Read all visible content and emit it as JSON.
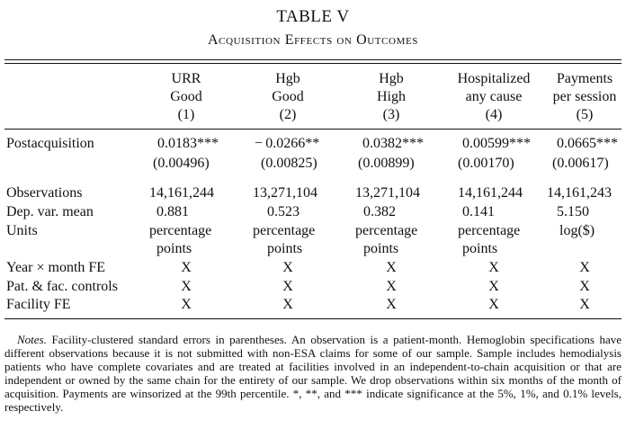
{
  "title": "TABLE V",
  "subtitle": "Acquisition Effects on Outcomes",
  "columns": [
    {
      "line1": "URR",
      "line2": "Good",
      "num": "(1)"
    },
    {
      "line1": "Hgb",
      "line2": "Good",
      "num": "(2)"
    },
    {
      "line1": "Hgb",
      "line2": "High",
      "num": "(3)"
    },
    {
      "line1": "Hospitalized",
      "line2": "any cause",
      "num": "(4)"
    },
    {
      "line1": "Payments",
      "line2": "per session",
      "num": "(5)"
    }
  ],
  "post": {
    "label": "Postacquisition",
    "coef": [
      "0.0183***",
      "− 0.0266**",
      "0.0382***",
      "0.00599***",
      "0.0665***"
    ],
    "se": [
      "(0.00496)",
      "(0.00825)",
      "(0.00899)",
      "(0.00170)",
      "(0.00617)"
    ]
  },
  "obs": {
    "label": "Observations",
    "values": [
      "14,161,244",
      "13,271,104",
      "13,271,104",
      "14,161,244",
      "14,161,243"
    ]
  },
  "depvar": {
    "label": "Dep. var. mean",
    "values": [
      "0.881",
      "0.523",
      "0.382",
      "0.141",
      "5.150"
    ]
  },
  "units": {
    "label": "Units",
    "line1": [
      "percentage",
      "percentage",
      "percentage",
      "percentage",
      "log($)"
    ],
    "line2": [
      "points",
      "points",
      "points",
      "points",
      ""
    ]
  },
  "fe": [
    {
      "label": "Year × month FE",
      "values": [
        "X",
        "X",
        "X",
        "X",
        "X"
      ]
    },
    {
      "label": "Pat. & fac. controls",
      "values": [
        "X",
        "X",
        "X",
        "X",
        "X"
      ]
    },
    {
      "label": "Facility FE",
      "values": [
        "X",
        "X",
        "X",
        "X",
        "X"
      ]
    }
  ],
  "notes": {
    "lead": "Notes.",
    "text": "Facility-clustered standard errors in parentheses. An observation is a patient-month. Hemoglobin specifications have different observations because it is not submitted with non-ESA claims for some of our sample. Sample includes hemodialysis patients who have complete covariates and are treated at facilities involved in an independent-to-chain acquisition or that are independent or owned by the same chain for the entirety of our sample. We drop observations within six months of the month of acquisition. Payments are winsorized at the 99th percentile. *, **, and *** indicate significance at the 5%, 1%, and 0.1% levels, respectively."
  }
}
